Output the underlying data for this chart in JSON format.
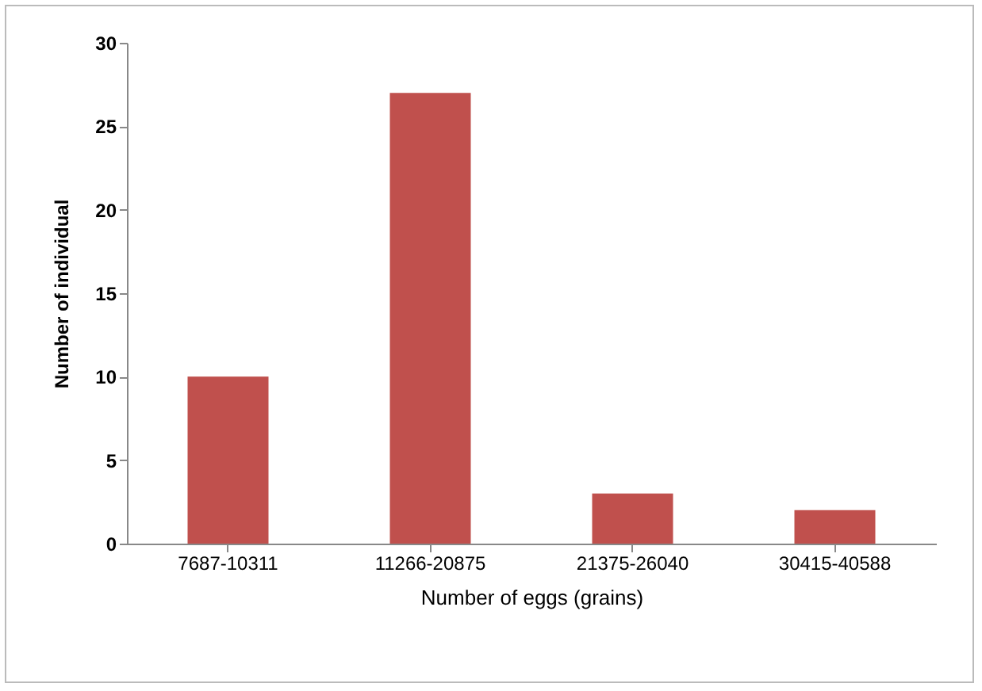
{
  "chart_data": {
    "type": "bar",
    "xlabel": "Number of eggs (grains)",
    "ylabel": "Number of individual",
    "categories": [
      "7687-10311",
      "11266-20875",
      "21375-26040",
      "30415-40588"
    ],
    "values": [
      10,
      27,
      3,
      2
    ],
    "color": "#c0504d",
    "ylim": [
      0,
      30
    ],
    "yticks": [
      0,
      5,
      10,
      15,
      20,
      25,
      30
    ],
    "grid": false
  }
}
